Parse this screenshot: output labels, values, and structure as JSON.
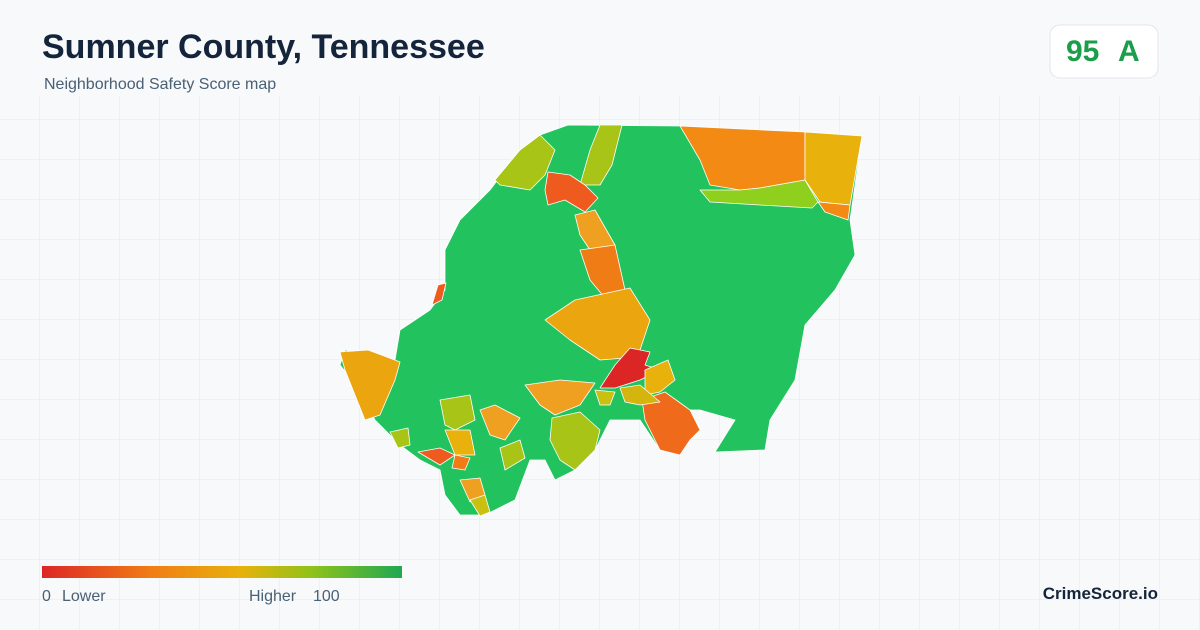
{
  "header": {
    "title": "Sumner County, Tennessee",
    "subtitle": "Neighborhood Safety Score map"
  },
  "score": {
    "value": 95,
    "grade": "A"
  },
  "legend": {
    "min": 0,
    "min_label": "Lower",
    "max_label": "Higher",
    "max": 100
  },
  "brand": "CrimeScore.io"
}
